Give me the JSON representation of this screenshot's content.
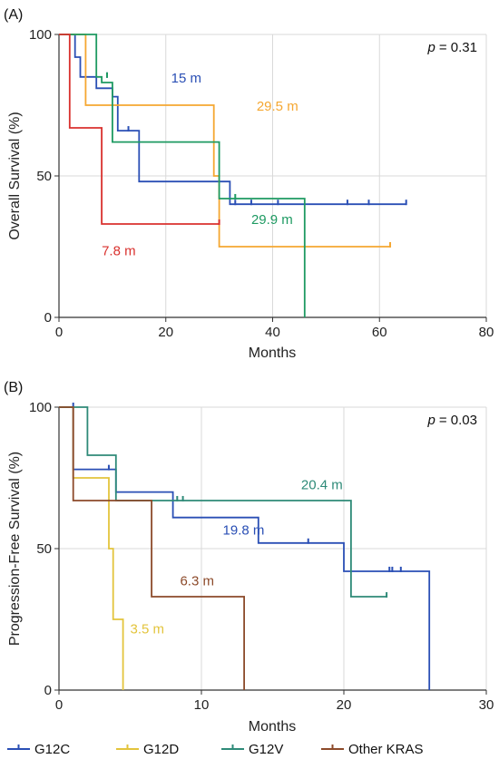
{
  "chart_data": [
    {
      "type": "line",
      "panel_label": "(A)",
      "xlabel": "Months",
      "ylabel": "Overall Survival (%)",
      "xlim": [
        0,
        80
      ],
      "ylim": [
        0,
        100
      ],
      "xticks": [
        0,
        20,
        40,
        60,
        80
      ],
      "yticks": [
        0,
        50,
        100
      ],
      "xtick_labels": [
        "0",
        "20",
        "40",
        "60",
        "80"
      ],
      "ytick_labels": [
        "0",
        "50",
        "100"
      ],
      "p_prefix": "p",
      "p_value_text": "= 0.31",
      "grid": true,
      "series": [
        {
          "name": "G12C",
          "color": "#2a4fb5",
          "steps": [
            [
              0,
              100
            ],
            [
              3,
              100
            ],
            [
              3,
              92
            ],
            [
              4,
              92
            ],
            [
              4,
              85
            ],
            [
              7,
              85
            ],
            [
              7,
              81
            ],
            [
              10,
              81
            ],
            [
              10,
              78
            ],
            [
              11,
              78
            ],
            [
              11,
              66
            ],
            [
              15,
              66
            ],
            [
              15,
              48
            ],
            [
              32,
              48
            ],
            [
              32,
              40
            ],
            [
              65,
              40
            ]
          ],
          "censors": [
            [
              9,
              85
            ],
            [
              13,
              66
            ],
            [
              33,
              40
            ],
            [
              36,
              40
            ],
            [
              41,
              40
            ],
            [
              54,
              40
            ],
            [
              58,
              40
            ],
            [
              65,
              40
            ]
          ],
          "median_label": "15 m",
          "median_label_pos": [
            21,
            83
          ]
        },
        {
          "name": "G12D",
          "color": "#f5a731",
          "steps": [
            [
              0,
              100
            ],
            [
              5,
              100
            ],
            [
              5,
              75
            ],
            [
              29,
              75
            ],
            [
              29,
              50
            ],
            [
              30,
              50
            ],
            [
              30,
              25
            ],
            [
              62,
              25
            ]
          ],
          "censors": [
            [
              62,
              25
            ]
          ],
          "median_label": "29.5 m",
          "median_label_pos": [
            37,
            73
          ]
        },
        {
          "name": "G12V",
          "color": "#1e9a62",
          "steps": [
            [
              0,
              100
            ],
            [
              7,
              100
            ],
            [
              7,
              85
            ],
            [
              8,
              85
            ],
            [
              8,
              83
            ],
            [
              10,
              83
            ],
            [
              10,
              62
            ],
            [
              30,
              62
            ],
            [
              30,
              42
            ],
            [
              46,
              42
            ],
            [
              46,
              0
            ]
          ],
          "censors": [
            [
              9,
              85
            ],
            [
              33,
              42
            ]
          ],
          "median_label": "29.9 m",
          "median_label_pos": [
            36,
            33
          ]
        },
        {
          "name": "",
          "color": "#d9312e",
          "steps": [
            [
              0,
              100
            ],
            [
              2,
              100
            ],
            [
              2,
              67
            ],
            [
              8,
              67
            ],
            [
              8,
              33
            ],
            [
              30,
              33
            ]
          ],
          "censors": [
            [
              30,
              33
            ]
          ],
          "median_label": "7.8 m",
          "median_label_pos": [
            8,
            22
          ]
        }
      ]
    },
    {
      "type": "line",
      "panel_label": "(B)",
      "xlabel": "Months",
      "ylabel": "Progression-Free Survival (%)",
      "xlim": [
        0,
        30
      ],
      "ylim": [
        0,
        100
      ],
      "xticks": [
        0,
        10,
        20,
        30
      ],
      "yticks": [
        0,
        50,
        100
      ],
      "xtick_labels": [
        "0",
        "10",
        "20",
        "30"
      ],
      "ytick_labels": [
        "0",
        "50",
        "100"
      ],
      "p_prefix": "p",
      "p_value_text": "= 0.03",
      "grid": true,
      "legend_position": "bottom",
      "series": [
        {
          "name": "G12C",
          "color": "#2a4fb5",
          "steps": [
            [
              0,
              100
            ],
            [
              1,
              100
            ],
            [
              1,
              78
            ],
            [
              4,
              78
            ],
            [
              4,
              70
            ],
            [
              8,
              70
            ],
            [
              8,
              61
            ],
            [
              14,
              61
            ],
            [
              14,
              52
            ],
            [
              20,
              52
            ],
            [
              20,
              42
            ],
            [
              26,
              42
            ],
            [
              26,
              0
            ]
          ],
          "censors": [
            [
              1,
              100
            ],
            [
              3.5,
              78
            ],
            [
              17.5,
              52
            ],
            [
              23.2,
              42
            ],
            [
              23.4,
              42
            ],
            [
              24,
              42
            ]
          ],
          "median_label": "19.8 m",
          "median_label_pos": [
            11.5,
            55
          ]
        },
        {
          "name": "G12D",
          "color": "#e3c43c",
          "steps": [
            [
              0,
              100
            ],
            [
              1,
              100
            ],
            [
              1,
              75
            ],
            [
              3.5,
              75
            ],
            [
              3.5,
              50
            ],
            [
              3.8,
              50
            ],
            [
              3.8,
              25
            ],
            [
              4.5,
              25
            ],
            [
              4.5,
              0
            ]
          ],
          "censors": [],
          "median_label": "3.5 m",
          "median_label_pos": [
            5,
            20
          ]
        },
        {
          "name": "G12V",
          "color": "#2e8a78",
          "steps": [
            [
              0,
              100
            ],
            [
              2,
              100
            ],
            [
              2,
              83
            ],
            [
              4,
              83
            ],
            [
              4,
              67
            ],
            [
              20.5,
              67
            ],
            [
              20.5,
              33
            ],
            [
              23,
              33
            ]
          ],
          "censors": [
            [
              8.3,
              67
            ],
            [
              8.7,
              67
            ],
            [
              23,
              33
            ]
          ],
          "median_label": "20.4 m",
          "median_label_pos": [
            17,
            71
          ]
        },
        {
          "name": "Other KRAS",
          "color": "#8c4a2a",
          "steps": [
            [
              0,
              100
            ],
            [
              1,
              100
            ],
            [
              1,
              67
            ],
            [
              6.5,
              67
            ],
            [
              6.5,
              33
            ],
            [
              13,
              33
            ],
            [
              13,
              0
            ]
          ],
          "censors": [],
          "median_label": "6.3 m",
          "median_label_pos": [
            8.5,
            37
          ]
        }
      ]
    }
  ]
}
